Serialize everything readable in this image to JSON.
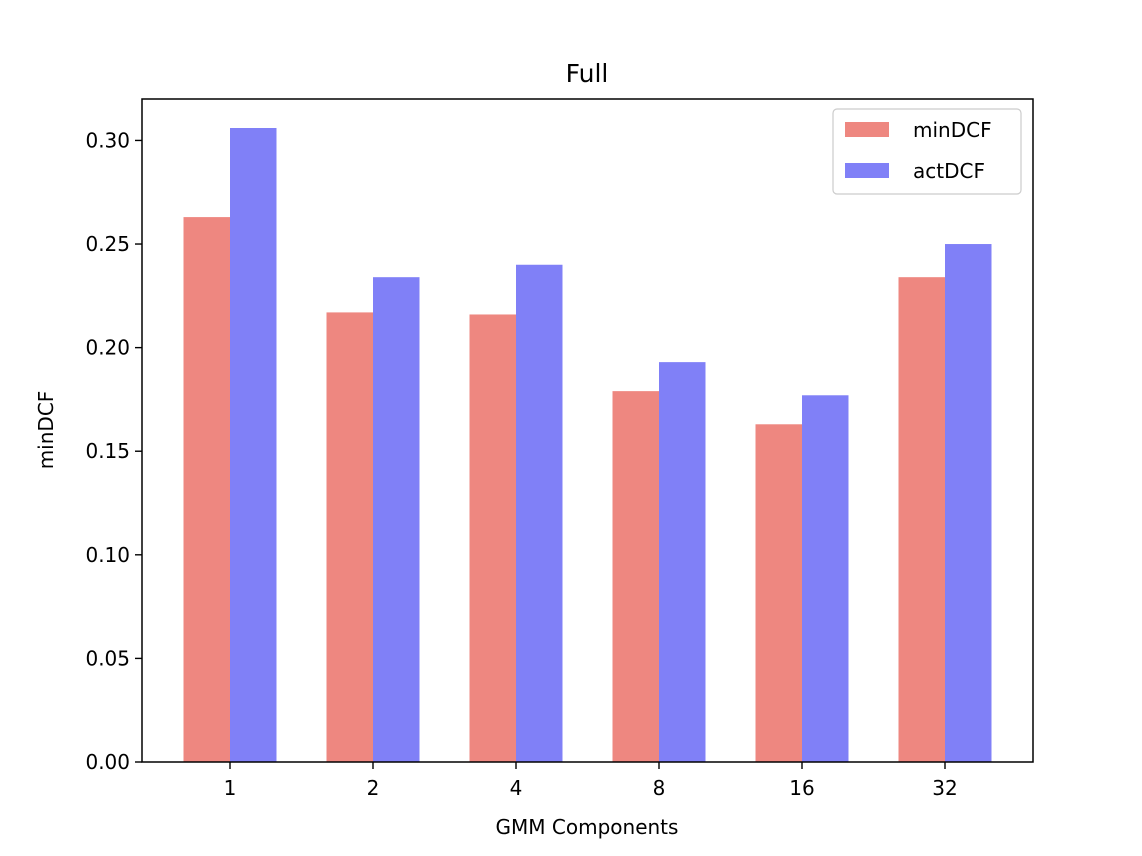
{
  "chart_data": {
    "type": "bar",
    "title": "Full",
    "xlabel": "GMM Components",
    "ylabel": "minDCF",
    "categories": [
      "1",
      "2",
      "4",
      "8",
      "16",
      "32"
    ],
    "series": [
      {
        "name": "minDCF",
        "color": "#ee8780",
        "values": [
          0.263,
          0.217,
          0.216,
          0.179,
          0.163,
          0.234
        ]
      },
      {
        "name": "actDCF",
        "color": "#8080f7",
        "values": [
          0.306,
          0.234,
          0.24,
          0.193,
          0.177,
          0.25
        ]
      }
    ],
    "ylim": [
      0,
      0.32
    ],
    "yticks": [
      0.0,
      0.05,
      0.1,
      0.15,
      0.2,
      0.25,
      0.3
    ],
    "ytick_labels": [
      "0.00",
      "0.05",
      "0.10",
      "0.15",
      "0.20",
      "0.25",
      "0.30"
    ],
    "grid": false,
    "legend_position": "top-right"
  }
}
